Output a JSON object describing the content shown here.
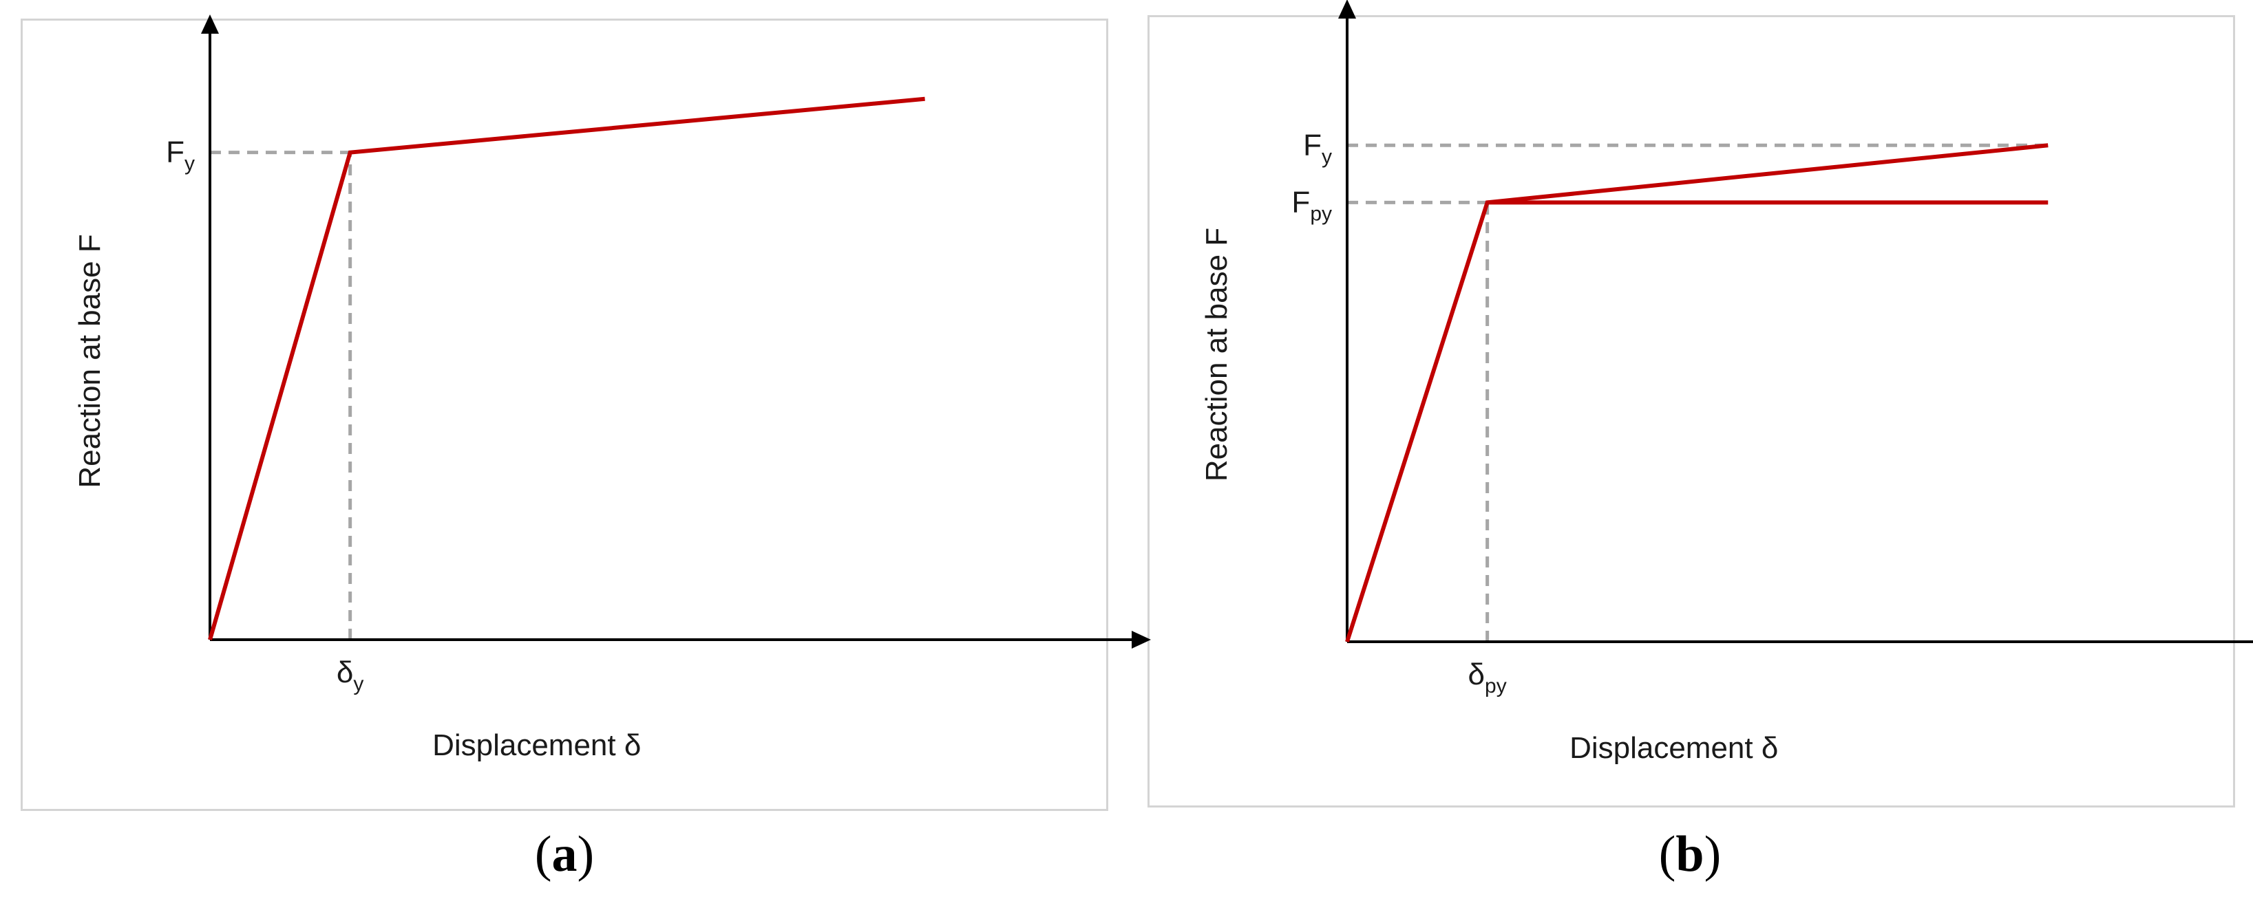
{
  "figure": {
    "panels": [
      {
        "caption_open": "(",
        "caption_letter": "a",
        "caption_close": ")"
      },
      {
        "caption_open": "(",
        "caption_letter": "b",
        "caption_close": ")"
      }
    ]
  },
  "colors": {
    "curve": "#c00000",
    "guide": "#a6a6a6",
    "axis": "#000000",
    "frame": "#d4d4d4"
  },
  "chart_data": [
    {
      "type": "line",
      "title": "",
      "xlabel": "Displacement δ",
      "ylabel": "Reaction at base F",
      "xlim": [
        0,
        6.3
      ],
      "ylim": [
        0,
        1.2
      ],
      "grid": false,
      "series": [
        {
          "x": [
            0,
            1.0,
            5.1
          ],
          "y": [
            0,
            1.0,
            1.11
          ]
        }
      ],
      "guides": [
        {
          "label_main": "F",
          "label_sub": "y",
          "axis": "y",
          "value": 1.0,
          "to_x": 1.0
        },
        {
          "label_main": "δ",
          "label_sub": "y",
          "axis": "x",
          "value": 1.0,
          "to_y": 1.0
        }
      ]
    },
    {
      "type": "line",
      "title": "",
      "xlabel": "Displacement δ",
      "ylabel": "Reaction at base F",
      "xlim": [
        0,
        6.3
      ],
      "ylim": [
        0,
        1.37
      ],
      "grid": false,
      "series": [
        {
          "x": [
            0,
            1.0,
            5.0
          ],
          "y": [
            0,
            1.0,
            1.13
          ]
        },
        {
          "x": [
            1.0,
            5.0
          ],
          "y": [
            1.0,
            1.0
          ]
        }
      ],
      "guides": [
        {
          "label_main": "F",
          "label_sub": "y",
          "axis": "y",
          "value": 1.13,
          "to_x": 5.0
        },
        {
          "label_main": "F",
          "label_sub": "py",
          "axis": "y",
          "value": 1.0,
          "to_x": 1.0
        },
        {
          "label_main": "δ",
          "label_sub": "py",
          "axis": "x",
          "value": 1.0,
          "to_y": 1.0
        }
      ]
    }
  ]
}
